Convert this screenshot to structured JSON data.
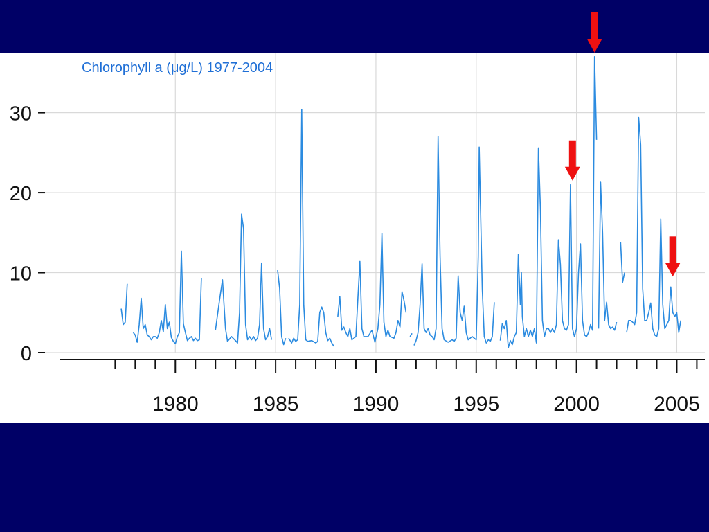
{
  "chart_data": {
    "type": "line",
    "title": "Chlorophyll a (μg/L)  1977-2004",
    "xlabel": "",
    "ylabel": "",
    "xlim": [
      1973.5,
      2006.4
    ],
    "ylim": [
      0,
      37.5
    ],
    "x_ticks": [
      1980,
      1985,
      1990,
      1995,
      2000,
      2005
    ],
    "y_ticks": [
      0,
      10,
      20,
      30
    ],
    "grid": true,
    "colors": {
      "line": "#2b8be0",
      "grid": "#d9d9d9",
      "arrow": "#ee1111",
      "title": "#1f6fd6"
    },
    "arrows": [
      {
        "x": 2000.9,
        "y": 37.5
      },
      {
        "x": 1999.8,
        "y": 21.5
      },
      {
        "x": 2004.8,
        "y": 9.5
      }
    ],
    "series": [
      {
        "points": [
          [
            1977.3,
            5.5
          ],
          [
            1977.4,
            3.5
          ],
          [
            1977.5,
            3.8
          ],
          [
            1977.6,
            8.6
          ],
          null,
          [
            1977.9,
            2.5
          ],
          [
            1978.0,
            2.2
          ],
          [
            1978.1,
            1.3
          ],
          [
            1978.2,
            3.5
          ],
          [
            1978.3,
            6.8
          ],
          [
            1978.4,
            3.0
          ],
          [
            1978.5,
            3.5
          ],
          [
            1978.6,
            2.2
          ],
          [
            1978.7,
            2.0
          ],
          [
            1978.8,
            1.6
          ],
          [
            1978.9,
            2.0
          ],
          [
            1979.0,
            2.0
          ],
          [
            1979.1,
            1.8
          ],
          [
            1979.2,
            2.5
          ],
          [
            1979.3,
            4.0
          ],
          [
            1979.4,
            2.6
          ],
          [
            1979.5,
            6.0
          ],
          [
            1979.6,
            3.0
          ],
          [
            1979.7,
            3.8
          ],
          [
            1979.8,
            1.9
          ],
          [
            1979.9,
            1.4
          ],
          [
            1980.0,
            1.1
          ],
          [
            1980.1,
            2.0
          ],
          [
            1980.2,
            2.5
          ],
          [
            1980.3,
            12.7
          ],
          [
            1980.4,
            3.6
          ],
          [
            1980.5,
            2.5
          ],
          [
            1980.6,
            1.5
          ],
          [
            1980.7,
            1.8
          ],
          [
            1980.8,
            2.0
          ],
          [
            1980.9,
            1.5
          ],
          [
            1981.0,
            1.8
          ],
          [
            1981.1,
            1.5
          ],
          [
            1981.2,
            1.6
          ],
          [
            1981.3,
            9.3
          ],
          null,
          [
            1982.0,
            2.8
          ],
          [
            1982.2,
            6.5
          ],
          [
            1982.35,
            9.1
          ],
          [
            1982.5,
            3.0
          ],
          [
            1982.6,
            1.4
          ],
          [
            1982.8,
            2.0
          ],
          [
            1983.0,
            1.5
          ],
          [
            1983.1,
            1.2
          ],
          [
            1983.2,
            5.0
          ],
          [
            1983.3,
            17.3
          ],
          [
            1983.4,
            15.5
          ],
          [
            1983.5,
            3.5
          ],
          [
            1983.6,
            1.6
          ],
          [
            1983.7,
            2.0
          ],
          [
            1983.8,
            1.6
          ],
          [
            1983.9,
            2.0
          ],
          [
            1984.0,
            1.5
          ],
          [
            1984.1,
            1.8
          ],
          [
            1984.2,
            3.5
          ],
          [
            1984.3,
            11.2
          ],
          [
            1984.4,
            3.0
          ],
          [
            1984.5,
            1.6
          ],
          [
            1984.6,
            2.0
          ],
          [
            1984.7,
            3.0
          ],
          [
            1984.8,
            1.6
          ],
          null,
          [
            1985.1,
            10.3
          ],
          [
            1985.2,
            8.0
          ],
          [
            1985.3,
            2.0
          ],
          [
            1985.4,
            1.0
          ],
          [
            1985.5,
            1.8
          ],
          null,
          [
            1985.65,
            1.8
          ],
          [
            1985.8,
            1.2
          ],
          [
            1985.9,
            1.8
          ],
          [
            1986.0,
            1.4
          ],
          [
            1986.1,
            1.6
          ],
          [
            1986.2,
            6.0
          ],
          [
            1986.3,
            30.4
          ],
          [
            1986.4,
            6.0
          ],
          [
            1986.5,
            1.6
          ],
          [
            1986.6,
            1.4
          ],
          [
            1986.8,
            1.5
          ],
          [
            1987.0,
            1.2
          ],
          [
            1987.1,
            1.4
          ],
          [
            1987.2,
            5.0
          ],
          [
            1987.3,
            5.7
          ],
          [
            1987.4,
            5.0
          ],
          [
            1987.5,
            2.5
          ],
          [
            1987.6,
            1.5
          ],
          [
            1987.7,
            1.8
          ],
          [
            1987.8,
            1.2
          ],
          [
            1987.9,
            0.8
          ],
          null,
          [
            1988.1,
            4.5
          ],
          [
            1988.2,
            7.0
          ],
          [
            1988.3,
            2.8
          ],
          [
            1988.4,
            3.2
          ],
          [
            1988.5,
            2.5
          ],
          [
            1988.6,
            2.0
          ],
          [
            1988.7,
            3.0
          ],
          [
            1988.8,
            1.6
          ],
          [
            1988.9,
            1.8
          ],
          [
            1989.0,
            2.0
          ],
          [
            1989.1,
            6.8
          ],
          [
            1989.2,
            11.4
          ],
          [
            1989.3,
            3.0
          ],
          [
            1989.4,
            2.0
          ],
          [
            1989.6,
            2.0
          ],
          [
            1989.8,
            2.8
          ],
          [
            1989.95,
            1.3
          ],
          [
            1990.1,
            3.0
          ],
          [
            1990.2,
            6.0
          ],
          [
            1990.3,
            14.9
          ],
          [
            1990.4,
            3.8
          ],
          [
            1990.5,
            2.0
          ],
          [
            1990.6,
            2.8
          ],
          [
            1990.7,
            2.0
          ],
          [
            1990.9,
            1.8
          ],
          [
            1991.0,
            2.5
          ],
          [
            1991.1,
            4.0
          ],
          [
            1991.2,
            3.2
          ],
          [
            1991.3,
            7.6
          ],
          [
            1991.4,
            6.5
          ],
          [
            1991.5,
            5.0
          ],
          null,
          [
            1991.7,
            2.0
          ],
          [
            1991.8,
            2.4
          ],
          null,
          [
            1991.9,
            0.9
          ],
          [
            1992.0,
            1.5
          ],
          [
            1992.1,
            2.5
          ],
          [
            1992.2,
            6.0
          ],
          [
            1992.3,
            11.1
          ],
          [
            1992.4,
            3.0
          ],
          [
            1992.5,
            2.5
          ],
          [
            1992.6,
            3.0
          ],
          [
            1992.7,
            2.2
          ],
          [
            1992.8,
            2.0
          ],
          [
            1992.9,
            1.6
          ],
          [
            1993.0,
            3.0
          ],
          [
            1993.1,
            27.0
          ],
          [
            1993.2,
            12.0
          ],
          [
            1993.3,
            3.0
          ],
          [
            1993.4,
            1.6
          ],
          [
            1993.6,
            1.3
          ],
          [
            1993.8,
            1.6
          ],
          [
            1993.9,
            1.4
          ],
          [
            1994.0,
            1.8
          ],
          [
            1994.1,
            9.6
          ],
          [
            1994.2,
            5.0
          ],
          [
            1994.3,
            4.0
          ],
          [
            1994.4,
            5.8
          ],
          [
            1994.5,
            2.5
          ],
          [
            1994.6,
            1.6
          ],
          [
            1994.8,
            2.0
          ],
          [
            1995.0,
            1.6
          ],
          [
            1995.1,
            12.0
          ],
          [
            1995.15,
            25.7
          ],
          [
            1995.3,
            8.0
          ],
          [
            1995.4,
            2.0
          ],
          [
            1995.5,
            1.2
          ],
          [
            1995.6,
            1.6
          ],
          [
            1995.7,
            1.4
          ],
          [
            1995.8,
            2.0
          ],
          [
            1995.9,
            6.3
          ],
          null,
          [
            1996.2,
            1.5
          ],
          [
            1996.3,
            3.6
          ],
          [
            1996.4,
            3.0
          ],
          [
            1996.5,
            4.0
          ],
          [
            1996.6,
            0.6
          ],
          [
            1996.7,
            1.5
          ],
          [
            1996.8,
            1.0
          ],
          [
            1996.9,
            2.0
          ],
          [
            1997.0,
            2.5
          ],
          [
            1997.1,
            12.3
          ],
          [
            1997.2,
            6.0
          ],
          [
            1997.25,
            10.0
          ],
          [
            1997.3,
            4.5
          ],
          [
            1997.4,
            2.0
          ],
          [
            1997.5,
            3.0
          ],
          [
            1997.6,
            2.0
          ],
          [
            1997.7,
            2.8
          ],
          [
            1997.8,
            2.0
          ],
          [
            1997.9,
            3.0
          ],
          [
            1998.0,
            1.2
          ],
          [
            1998.1,
            25.6
          ],
          [
            1998.2,
            18.0
          ],
          [
            1998.3,
            4.0
          ],
          [
            1998.4,
            2.0
          ],
          [
            1998.5,
            3.0
          ],
          [
            1998.6,
            3.0
          ],
          [
            1998.7,
            2.5
          ],
          [
            1998.8,
            3.0
          ],
          [
            1998.9,
            2.5
          ],
          [
            1999.0,
            3.5
          ],
          [
            1999.1,
            14.1
          ],
          [
            1999.2,
            11.0
          ],
          [
            1999.3,
            4.0
          ],
          [
            1999.4,
            3.0
          ],
          [
            1999.5,
            2.8
          ],
          [
            1999.6,
            3.5
          ],
          [
            1999.7,
            21.0
          ],
          [
            1999.8,
            3.0
          ],
          [
            1999.9,
            2.0
          ],
          [
            2000.0,
            3.0
          ],
          [
            2000.1,
            10.0
          ],
          [
            2000.2,
            13.6
          ],
          [
            2000.3,
            4.0
          ],
          [
            2000.4,
            2.2
          ],
          [
            2000.5,
            2.0
          ],
          [
            2000.6,
            2.5
          ],
          [
            2000.7,
            3.5
          ],
          [
            2000.8,
            2.8
          ],
          [
            2000.9,
            37.0
          ],
          [
            2001.0,
            26.6
          ],
          null,
          [
            2001.1,
            3.0
          ],
          [
            2001.2,
            21.3
          ],
          [
            2001.3,
            15.0
          ],
          [
            2001.4,
            4.0
          ],
          [
            2001.5,
            6.3
          ],
          [
            2001.6,
            3.5
          ],
          [
            2001.7,
            3.0
          ],
          [
            2001.8,
            3.2
          ],
          [
            2001.9,
            2.8
          ],
          [
            2002.0,
            3.8
          ],
          null,
          [
            2002.2,
            13.8
          ],
          [
            2002.3,
            8.8
          ],
          [
            2002.4,
            10.0
          ],
          null,
          [
            2002.5,
            2.5
          ],
          [
            2002.6,
            4.0
          ],
          [
            2002.7,
            4.0
          ],
          [
            2002.8,
            3.8
          ],
          [
            2002.9,
            3.5
          ],
          [
            2003.0,
            5.0
          ],
          [
            2003.1,
            29.4
          ],
          [
            2003.2,
            26.0
          ],
          [
            2003.3,
            8.0
          ],
          [
            2003.4,
            4.0
          ],
          [
            2003.5,
            4.0
          ],
          [
            2003.6,
            5.0
          ],
          [
            2003.7,
            6.2
          ],
          [
            2003.8,
            3.0
          ],
          [
            2003.9,
            2.2
          ],
          [
            2004.0,
            2.0
          ],
          [
            2004.1,
            3.0
          ],
          [
            2004.2,
            16.7
          ],
          [
            2004.3,
            6.0
          ],
          [
            2004.4,
            3.0
          ],
          [
            2004.5,
            3.5
          ],
          [
            2004.6,
            4.0
          ],
          [
            2004.7,
            8.2
          ],
          [
            2004.8,
            5.0
          ],
          [
            2004.9,
            4.5
          ],
          [
            2005.0,
            5.0
          ],
          [
            2005.1,
            2.5
          ],
          [
            2005.2,
            4.0
          ]
        ]
      }
    ]
  }
}
